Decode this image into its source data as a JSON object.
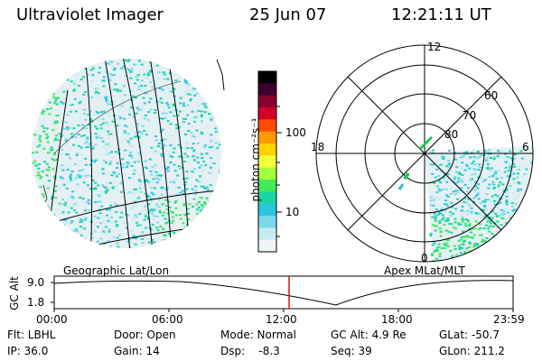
{
  "header": {
    "title": "Ultraviolet Imager",
    "date": "25 Jun 07",
    "time": "12:21:11 UT"
  },
  "colorbar": {
    "label": "photon cm⁻²s⁻¹",
    "ticks": [
      "100",
      "10"
    ],
    "colors": [
      "#000000",
      "#3a0030",
      "#8a0030",
      "#d4002a",
      "#ff4a00",
      "#ff9a00",
      "#ffd200",
      "#f2ff3a",
      "#a6ff3c",
      "#46e858",
      "#18d6a2",
      "#2cc6e0",
      "#7ad8ee",
      "#c6ecf2",
      "#eef6f7"
    ]
  },
  "panels": {
    "left_caption": "Geographic Lat/Lon",
    "right_caption": "Apex MLat/MLT",
    "polar_labels": [
      "12",
      "18",
      "6",
      "0",
      "60",
      "70",
      "80"
    ]
  },
  "altitude_plot": {
    "axis_label": "GC Alt",
    "y_ticks": [
      "9.0",
      "1.8"
    ],
    "x_ticks": [
      "00:00",
      "06:00",
      "12:00",
      "18:00",
      "23:59"
    ]
  },
  "status": {
    "flt": "Flt: LBHL",
    "ip": "IP: 36.0",
    "door": "Door: Open",
    "gain": "Gain: 14",
    "mode": "Mode: Normal",
    "dsp": "Dsp:    -8.3",
    "gcalt": "GC Alt: 4.9 Re",
    "seq": "Seq: 39",
    "glat": "GLat: -50.7",
    "glon": "GLon: 211.2"
  }
}
